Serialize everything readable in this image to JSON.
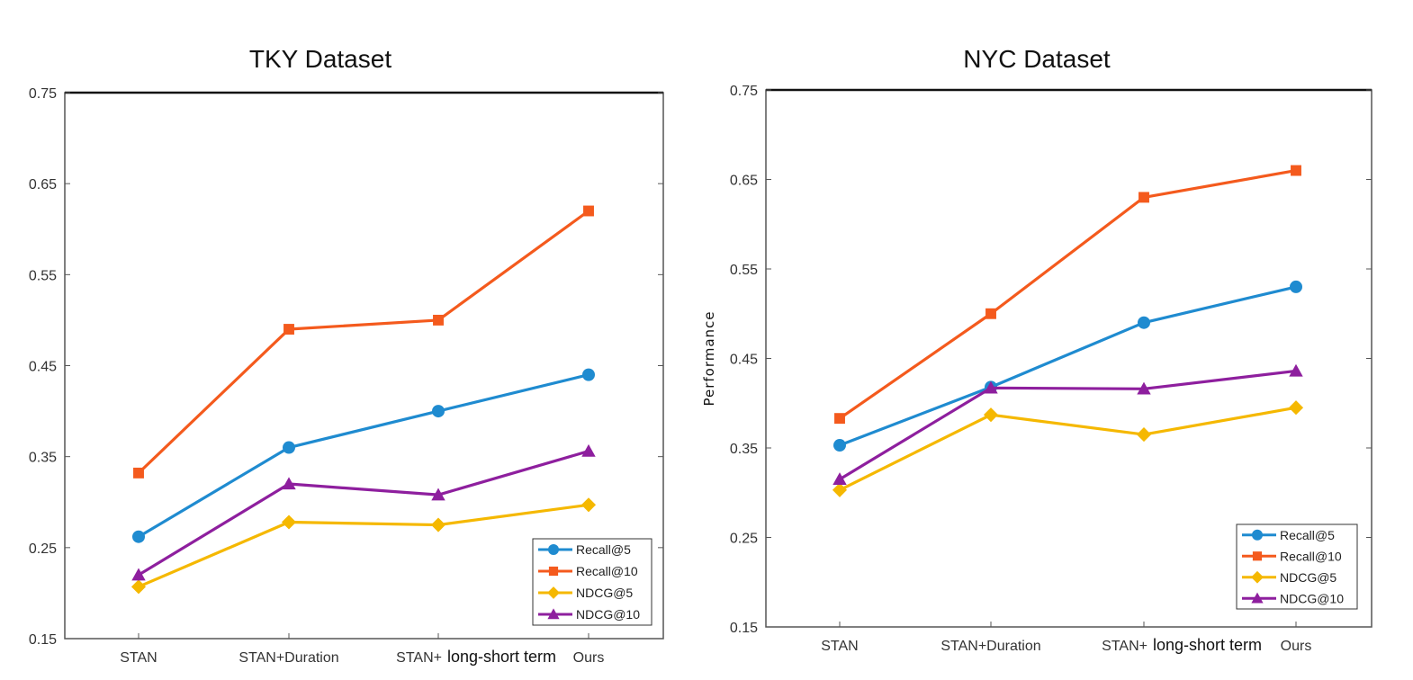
{
  "chart_data": [
    {
      "type": "line",
      "title": "TKY Dataset",
      "xlabel": "",
      "ylabel": "",
      "categories": [
        "STAN",
        "STAN+Duration",
        "STAN+ long-short term",
        "Ours"
      ],
      "category_labels": [
        {
          "text": "STAN"
        },
        {
          "text": "STAN+Duration"
        },
        {
          "text": "STAN+",
          "extra": "long-short term"
        },
        {
          "text": "Ours"
        }
      ],
      "ylim": [
        0.15,
        0.75
      ],
      "yticks": [
        "0.15",
        "0.25",
        "0.35",
        "0.45",
        "0.55",
        "0.65",
        "0.75"
      ],
      "grid": false,
      "legend": "bottom-right",
      "series": [
        {
          "name": "Recall@5",
          "color": "#1f8bd0",
          "marker": "circle",
          "values": [
            0.262,
            0.36,
            0.4,
            0.44
          ]
        },
        {
          "name": "Recall@10",
          "color": "#f45a1d",
          "marker": "square",
          "values": [
            0.332,
            0.49,
            0.5,
            0.62
          ]
        },
        {
          "name": "NDCG@5",
          "color": "#f5b800",
          "marker": "diamond",
          "values": [
            0.207,
            0.278,
            0.275,
            0.297
          ]
        },
        {
          "name": "NDCG@10",
          "color": "#8e1f9e",
          "marker": "triangle",
          "values": [
            0.22,
            0.32,
            0.308,
            0.356
          ]
        }
      ]
    },
    {
      "type": "line",
      "title": "NYC Dataset",
      "xlabel": "",
      "ylabel": "Performance",
      "categories": [
        "STAN",
        "STAN+Duration",
        "STAN+ long-short term",
        "Ours"
      ],
      "category_labels": [
        {
          "text": "STAN"
        },
        {
          "text": "STAN+Duration"
        },
        {
          "text": "STAN+",
          "extra": "long-short term"
        },
        {
          "text": "Ours"
        }
      ],
      "ylim": [
        0.15,
        0.75
      ],
      "yticks": [
        "0.15",
        "0.25",
        "0.35",
        "0.45",
        "0.55",
        "0.65",
        "0.75"
      ],
      "grid": false,
      "legend": "bottom-right",
      "series": [
        {
          "name": "Recall@5",
          "color": "#1f8bd0",
          "marker": "circle",
          "values": [
            0.353,
            0.418,
            0.49,
            0.53
          ]
        },
        {
          "name": "Recall@10",
          "color": "#f45a1d",
          "marker": "square",
          "values": [
            0.383,
            0.5,
            0.63,
            0.66
          ]
        },
        {
          "name": "NDCG@5",
          "color": "#f5b800",
          "marker": "diamond",
          "values": [
            0.303,
            0.387,
            0.365,
            0.395
          ]
        },
        {
          "name": "NDCG@10",
          "color": "#8e1f9e",
          "marker": "triangle",
          "values": [
            0.315,
            0.417,
            0.416,
            0.436
          ]
        }
      ]
    }
  ]
}
